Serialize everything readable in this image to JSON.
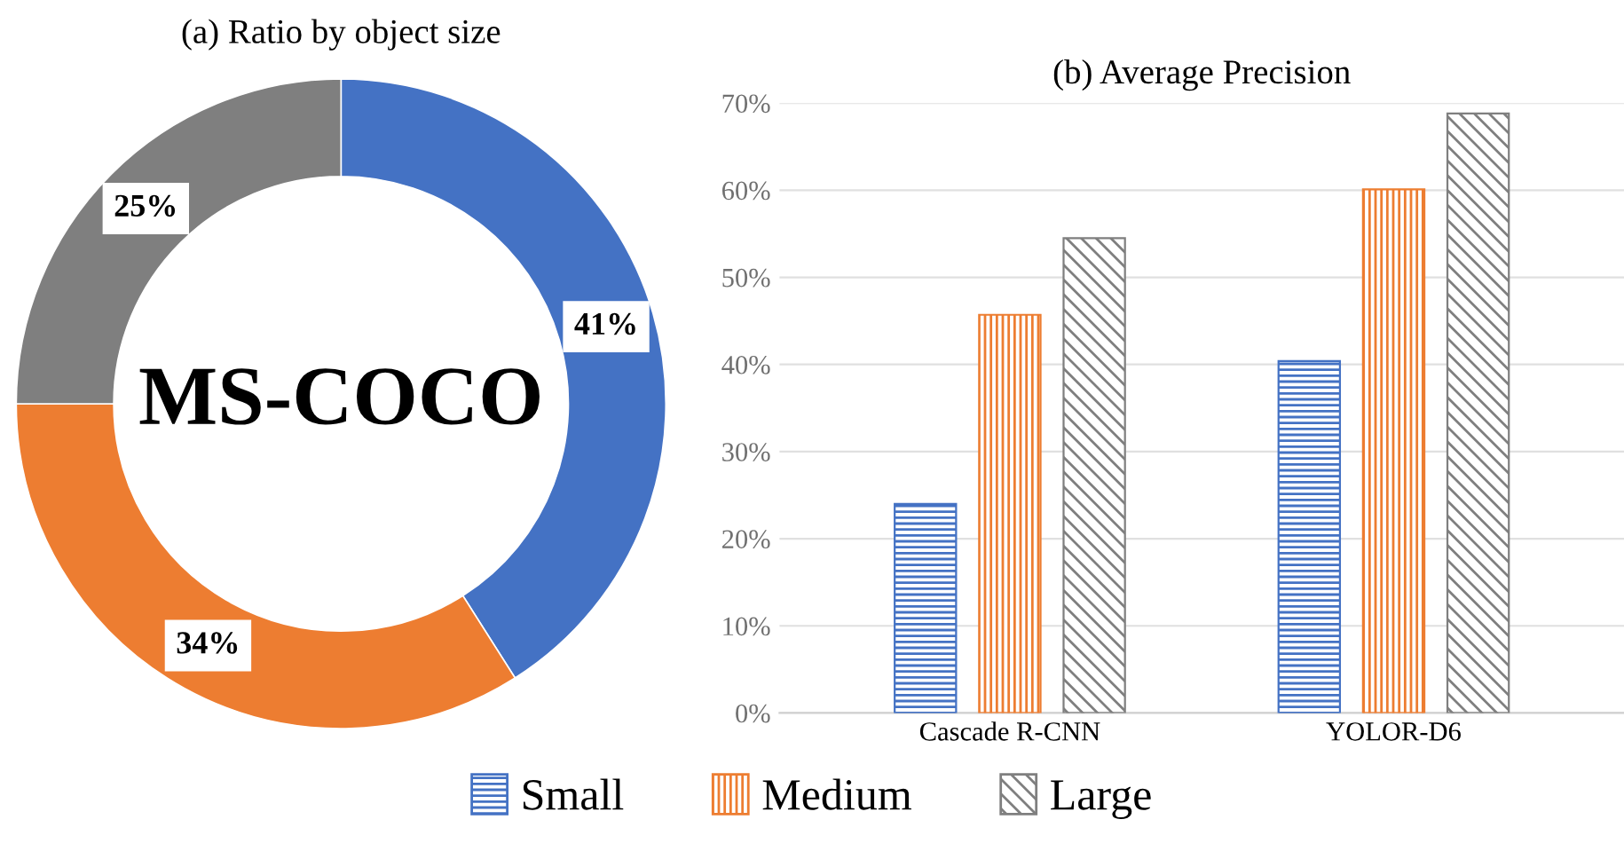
{
  "chart_data": [
    {
      "type": "donut",
      "title": "(a) Ratio by object size",
      "categories": [
        null,
        null,
        null
      ],
      "values": [
        41,
        34,
        25
      ],
      "colors": [
        "#4472c4",
        "#ed7d31",
        "#7f7f7f"
      ],
      "value_labels": [
        "41%",
        "34%",
        "25%"
      ],
      "annotations": [
        "MS-COCO"
      ]
    },
    {
      "type": "bar",
      "title": "(b) Average Precision",
      "categories": [
        "Cascade R-CNN",
        "YOLOR-D6"
      ],
      "series": [
        {
          "name": "Small",
          "color": "#4472c4",
          "values": [
            24.0,
            40.4
          ]
        },
        {
          "name": "Medium",
          "color": "#ed7d31",
          "values": [
            45.7,
            60.1
          ]
        },
        {
          "name": "Large",
          "color": "#7f7f7f",
          "values": [
            54.5,
            68.8
          ]
        }
      ],
      "ylim": [
        0,
        70
      ],
      "yticks": [
        {
          "value": 0,
          "label": "0%"
        },
        {
          "value": 10,
          "label": "10%"
        },
        {
          "value": 20,
          "label": "20%"
        },
        {
          "value": 30,
          "label": "30%"
        },
        {
          "value": 40,
          "label": "40%"
        },
        {
          "value": 50,
          "label": "50%"
        },
        {
          "value": 60,
          "label": "60%"
        },
        {
          "value": 70,
          "label": "70%"
        }
      ],
      "grid": "y",
      "legend": "bottom"
    }
  ]
}
